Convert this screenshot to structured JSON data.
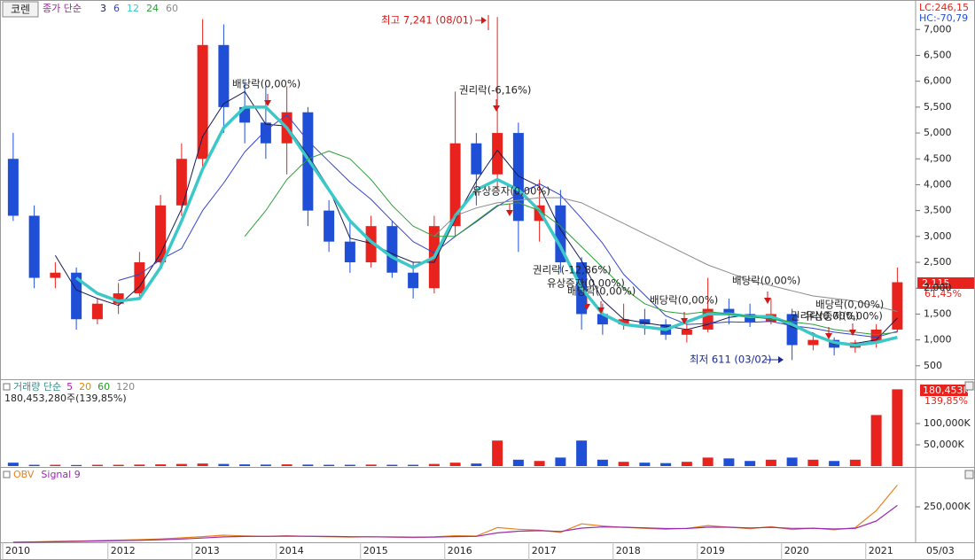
{
  "header": {
    "stock": "코렌",
    "lc": "LC:246,15",
    "hc": "HC:-70,79",
    "last_price": "2,115",
    "last_change": "61,45%",
    "last_volume": "180,453K",
    "volume_change": "139,85%"
  },
  "chart_data": [
    {
      "type": "candlestick",
      "legend_title": "종가 단순",
      "categories": [
        "2010",
        null,
        null,
        null,
        null,
        "2012",
        null,
        null,
        null,
        "2013",
        null,
        null,
        null,
        "2014",
        null,
        null,
        null,
        "2015",
        null,
        null,
        null,
        "2016",
        null,
        null,
        null,
        "2017",
        null,
        null,
        null,
        "2018",
        null,
        null,
        null,
        "2019",
        null,
        null,
        null,
        "2020",
        null,
        null,
        null,
        "2021",
        null
      ],
      "date_label": "05/03",
      "open": [
        4500,
        3400,
        2200,
        2300,
        1400,
        1700,
        1900,
        2500,
        3600,
        4500,
        6700,
        5500,
        5200,
        4800,
        5400,
        3500,
        2900,
        2500,
        3200,
        2300,
        2000,
        3200,
        4800,
        4200,
        5000,
        3300,
        3600,
        2500,
        1500,
        1300,
        1400,
        1300,
        1100,
        1200,
        1600,
        1500,
        1350,
        1500,
        900,
        1000,
        850,
        950,
        1200
      ],
      "high": [
        5000,
        3600,
        2500,
        2400,
        1800,
        2100,
        2700,
        3800,
        4800,
        7200,
        7100,
        6000,
        5900,
        5900,
        5500,
        3700,
        3300,
        3400,
        3300,
        2500,
        3400,
        5800,
        5000,
        7241,
        5200,
        4100,
        3900,
        2600,
        1700,
        1700,
        1600,
        1400,
        1300,
        2200,
        1800,
        1700,
        1800,
        1600,
        1100,
        1050,
        1000,
        1300,
        2400
      ],
      "low": [
        3300,
        2000,
        2000,
        1200,
        1300,
        1500,
        1800,
        2400,
        3400,
        4300,
        5000,
        4800,
        4500,
        4200,
        3200,
        2700,
        2300,
        2400,
        2200,
        1800,
        1900,
        3000,
        3600,
        3900,
        2700,
        2900,
        2300,
        1200,
        1100,
        1200,
        1100,
        1000,
        950,
        1150,
        1300,
        1250,
        1300,
        611,
        800,
        700,
        750,
        850,
        1150
      ],
      "close": [
        3400,
        2200,
        2300,
        1400,
        1700,
        1900,
        2500,
        3600,
        4500,
        6700,
        5500,
        5200,
        4800,
        5400,
        3500,
        2900,
        2500,
        3200,
        2300,
        2000,
        3200,
        4800,
        4200,
        5000,
        3300,
        3600,
        2500,
        1500,
        1300,
        1400,
        1300,
        1100,
        1200,
        1600,
        1500,
        1350,
        1500,
        900,
        1000,
        850,
        950,
        1200,
        2115
      ],
      "up_color": "#e8221c",
      "down_color": "#1f4fd6",
      "series": [
        {
          "name": "3",
          "color": "#1a1a50",
          "width": 1,
          "values": [
            null,
            null,
            2633,
            1967,
            1800,
            1667,
            2033,
            2667,
            3533,
            4933,
            5567,
            5800,
            5167,
            5133,
            4567,
            3933,
            2967,
            2867,
            2667,
            2500,
            2500,
            3333,
            4067,
            4667,
            4167,
            3967,
            3133,
            2533,
            1767,
            1400,
            1333,
            1267,
            1200,
            1300,
            1433,
            1483,
            1450,
            1250,
            1133,
            917,
            933,
            1000,
            1422
          ]
        },
        {
          "name": "6",
          "color": "#3344cc",
          "width": 1,
          "values": [
            null,
            null,
            null,
            null,
            null,
            2150,
            2267,
            2550,
            2767,
            3500,
            4033,
            4633,
            5050,
            5350,
            4850,
            4450,
            4050,
            3717,
            3300,
            2900,
            2683,
            3000,
            3283,
            3583,
            3817,
            4017,
            3800,
            3350,
            2867,
            2267,
            1867,
            1467,
            1300,
            1317,
            1350,
            1342,
            1358,
            1275,
            1225,
            1150,
            1100,
            1050,
            1169
          ]
        },
        {
          "name": "12",
          "color": "#3cc8c8",
          "width": 3.5,
          "values": [
            null,
            null,
            null,
            2200,
            1900,
            1750,
            1800,
            2400,
            3300,
            4300,
            5100,
            5500,
            5500,
            5100,
            4500,
            3900,
            3300,
            2900,
            2600,
            2400,
            2600,
            3400,
            3900,
            4100,
            3900,
            3500,
            2800,
            2000,
            1500,
            1300,
            1250,
            1200,
            1350,
            1500,
            1500,
            1450,
            1450,
            1300,
            1100,
            950,
            900,
            950,
            1050
          ]
        },
        {
          "name": "24",
          "color": "#2e9e3a",
          "width": 1,
          "values": [
            null,
            null,
            null,
            null,
            null,
            null,
            null,
            null,
            null,
            null,
            null,
            3000,
            3500,
            4100,
            4500,
            4650,
            4500,
            4100,
            3600,
            3200,
            3000,
            3000,
            3300,
            3600,
            3650,
            3500,
            3200,
            2800,
            2400,
            2000,
            1700,
            1550,
            1500,
            1550,
            1500,
            1450,
            1400,
            1350,
            1300,
            1200,
            1150,
            1100,
            1150
          ]
        },
        {
          "name": "60",
          "color": "#8a8a8a",
          "width": 1,
          "values": [
            null,
            null,
            null,
            null,
            null,
            null,
            null,
            null,
            null,
            null,
            null,
            null,
            null,
            null,
            null,
            null,
            null,
            null,
            null,
            null,
            3000,
            3400,
            3550,
            3650,
            3700,
            3750,
            3750,
            3650,
            3450,
            3250,
            3050,
            2850,
            2650,
            2450,
            2300,
            2150,
            2050,
            1950,
            1850,
            1800,
            1750,
            1650,
            1550
          ]
        }
      ],
      "ylim": [
        240,
        7570
      ],
      "yticks": [
        500,
        {
          "value": 1000,
          "label": "1,000"
        },
        {
          "value": 1500,
          "label": "1,500"
        },
        {
          "value": 2000,
          "label": "2,000"
        },
        {
          "value": 2500,
          "label": "2,500"
        },
        {
          "value": 3000,
          "label": "3,000"
        },
        {
          "value": 3500,
          "label": "3,500"
        },
        {
          "value": 4000,
          "label": "4,000"
        },
        {
          "value": 4500,
          "label": "4,500"
        },
        {
          "value": 5000,
          "label": "5,000"
        },
        {
          "value": 5500,
          "label": "5,500"
        },
        {
          "value": 6000,
          "label": "6,000"
        },
        {
          "value": 6500,
          "label": "6,500"
        },
        {
          "value": 7000,
          "label": "7,000"
        }
      ],
      "high_label": "최고 7,241 (08/01)",
      "low_label": "최저 611 (03/02)",
      "annotations": [
        "배당락(0,00%)",
        "권리락(-6,16%)",
        "유상증자(0,00%)",
        "권리락(-12,86%)",
        "유상증자(0,00%)",
        "배당락(0,00%)",
        "배당락(0,00%)",
        "배당락(0,00%)",
        "배당락(0,00%)",
        "권리락(0,00%)",
        "유상증자(0,00%)"
      ]
    },
    {
      "type": "bar",
      "legend_title": "거래량 단순",
      "legend_items": [
        {
          "name": "5",
          "color": "#b020b0"
        },
        {
          "name": "20",
          "color": "#e08a00"
        },
        {
          "name": "60",
          "color": "#20a020"
        },
        {
          "name": "120",
          "color": "#888888"
        }
      ],
      "summary": "180,453,280주(139,85%)",
      "values": [
        8000,
        3000,
        3000,
        2500,
        3000,
        3000,
        3500,
        4000,
        5000,
        6000,
        5000,
        4000,
        3500,
        4000,
        3500,
        3000,
        3000,
        3500,
        3000,
        3000,
        5000,
        8000,
        6000,
        60000,
        15000,
        12000,
        20000,
        60000,
        15000,
        10000,
        8000,
        7000,
        10000,
        20000,
        18000,
        12000,
        15000,
        20000,
        15000,
        12000,
        15000,
        120000,
        180453
      ],
      "ylim": [
        0,
        200000
      ],
      "yticks": [
        {
          "value": 50000,
          "label": "50,000K"
        },
        {
          "value": 100000,
          "label": "100,000K"
        }
      ]
    },
    {
      "type": "line",
      "series": [
        {
          "name": "OBV",
          "color": "#e8821c",
          "values": [
            0,
            3000,
            6000,
            9000,
            12000,
            15000,
            19000,
            24000,
            31000,
            40000,
            50000,
            45000,
            42000,
            46000,
            42000,
            39000,
            37000,
            39000,
            36000,
            34000,
            38000,
            46000,
            44000,
            104000,
            92000,
            85000,
            70000,
            130000,
            115000,
            105000,
            98000,
            92000,
            98000,
            118000,
            106000,
            96000,
            110000,
            90000,
            100000,
            88000,
            103000,
            223000,
            403453
          ]
        },
        {
          "name": "Signal 9",
          "color": "#9a2ab0",
          "values": [
            0,
            1500,
            3500,
            6000,
            8500,
            11000,
            14000,
            18000,
            23000,
            30000,
            38000,
            41000,
            42000,
            43000,
            42500,
            41000,
            39500,
            39000,
            37500,
            36000,
            37000,
            40000,
            42000,
            66000,
            78000,
            82000,
            76000,
            100000,
            108000,
            106000,
            102000,
            97000,
            97500,
            106000,
            106000,
            101000,
            105000,
            98000,
            99000,
            94000,
            98000,
            150000,
            260000
          ]
        }
      ],
      "ylim": [
        0,
        525000
      ],
      "yticks": [
        {
          "value": 250000,
          "label": "250,000K"
        }
      ]
    }
  ]
}
